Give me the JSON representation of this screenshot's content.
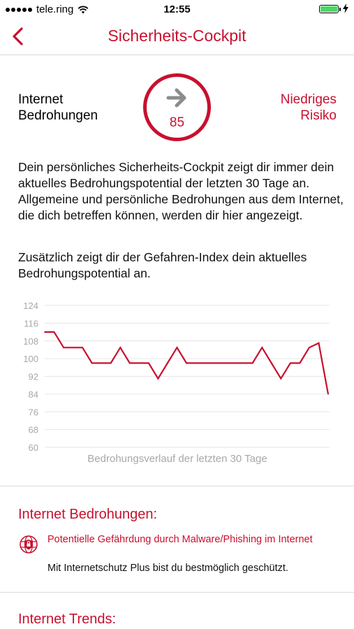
{
  "status_bar": {
    "carrier": "tele.ring",
    "time": "12:55",
    "battery_color": "#4cd964"
  },
  "nav": {
    "back_icon": "chevron-left-icon",
    "title": "Sicherheits-Cockpit"
  },
  "threat_summary": {
    "label": "Internet Bedrohungen",
    "gauge_icon": "arrow-right-icon",
    "gauge_value": "85",
    "risk_label": "Niedriges Risiko"
  },
  "description": {
    "paragraph1": "Dein persönliches Sicherheits-Cockpit zeigt dir immer dein aktuelles Bedrohungspotential der letzten 30 Tage an. Allgemeine und persönliche Bedrohungen aus dem Internet, die dich betreffen können, werden dir hier angezeigt.",
    "paragraph2": "Zusätzlich zeigt dir der Gefahren-Index dein aktuelles Bedrohungspotential an."
  },
  "chart_data": {
    "type": "line",
    "title": "",
    "xlabel": "Bedrohungsverlauf der letzten 30 Tage",
    "ylabel": "",
    "ylim": [
      60,
      124
    ],
    "yticks": [
      "124",
      "116",
      "108",
      "100",
      "92",
      "84",
      "76",
      "68",
      "60"
    ],
    "grid": true,
    "series": [
      {
        "color": "#c8102e",
        "values": [
          112,
          112,
          105,
          105,
          105,
          98,
          98,
          98,
          105,
          98,
          98,
          98,
          91,
          98,
          105,
          98,
          98,
          98,
          98,
          98,
          98,
          98,
          98,
          105,
          98,
          91,
          98,
          98,
          105,
          107,
          84
        ]
      }
    ]
  },
  "sections": {
    "internet_threats": {
      "title": "Internet Bedrohungen:",
      "item_icon": "shield-icon",
      "item_title": "Potentielle Gefährdung durch Malware/Phishing im Internet",
      "item_description": "Mit Internetschutz Plus bist du bestmöglich geschützt."
    },
    "internet_trends": {
      "title": "Internet Trends:"
    }
  },
  "colors": {
    "accent": "#c8102e",
    "divider": "#dcdcdc",
    "grid": "#e6e6e6",
    "axis_text": "#a8a8a8"
  }
}
